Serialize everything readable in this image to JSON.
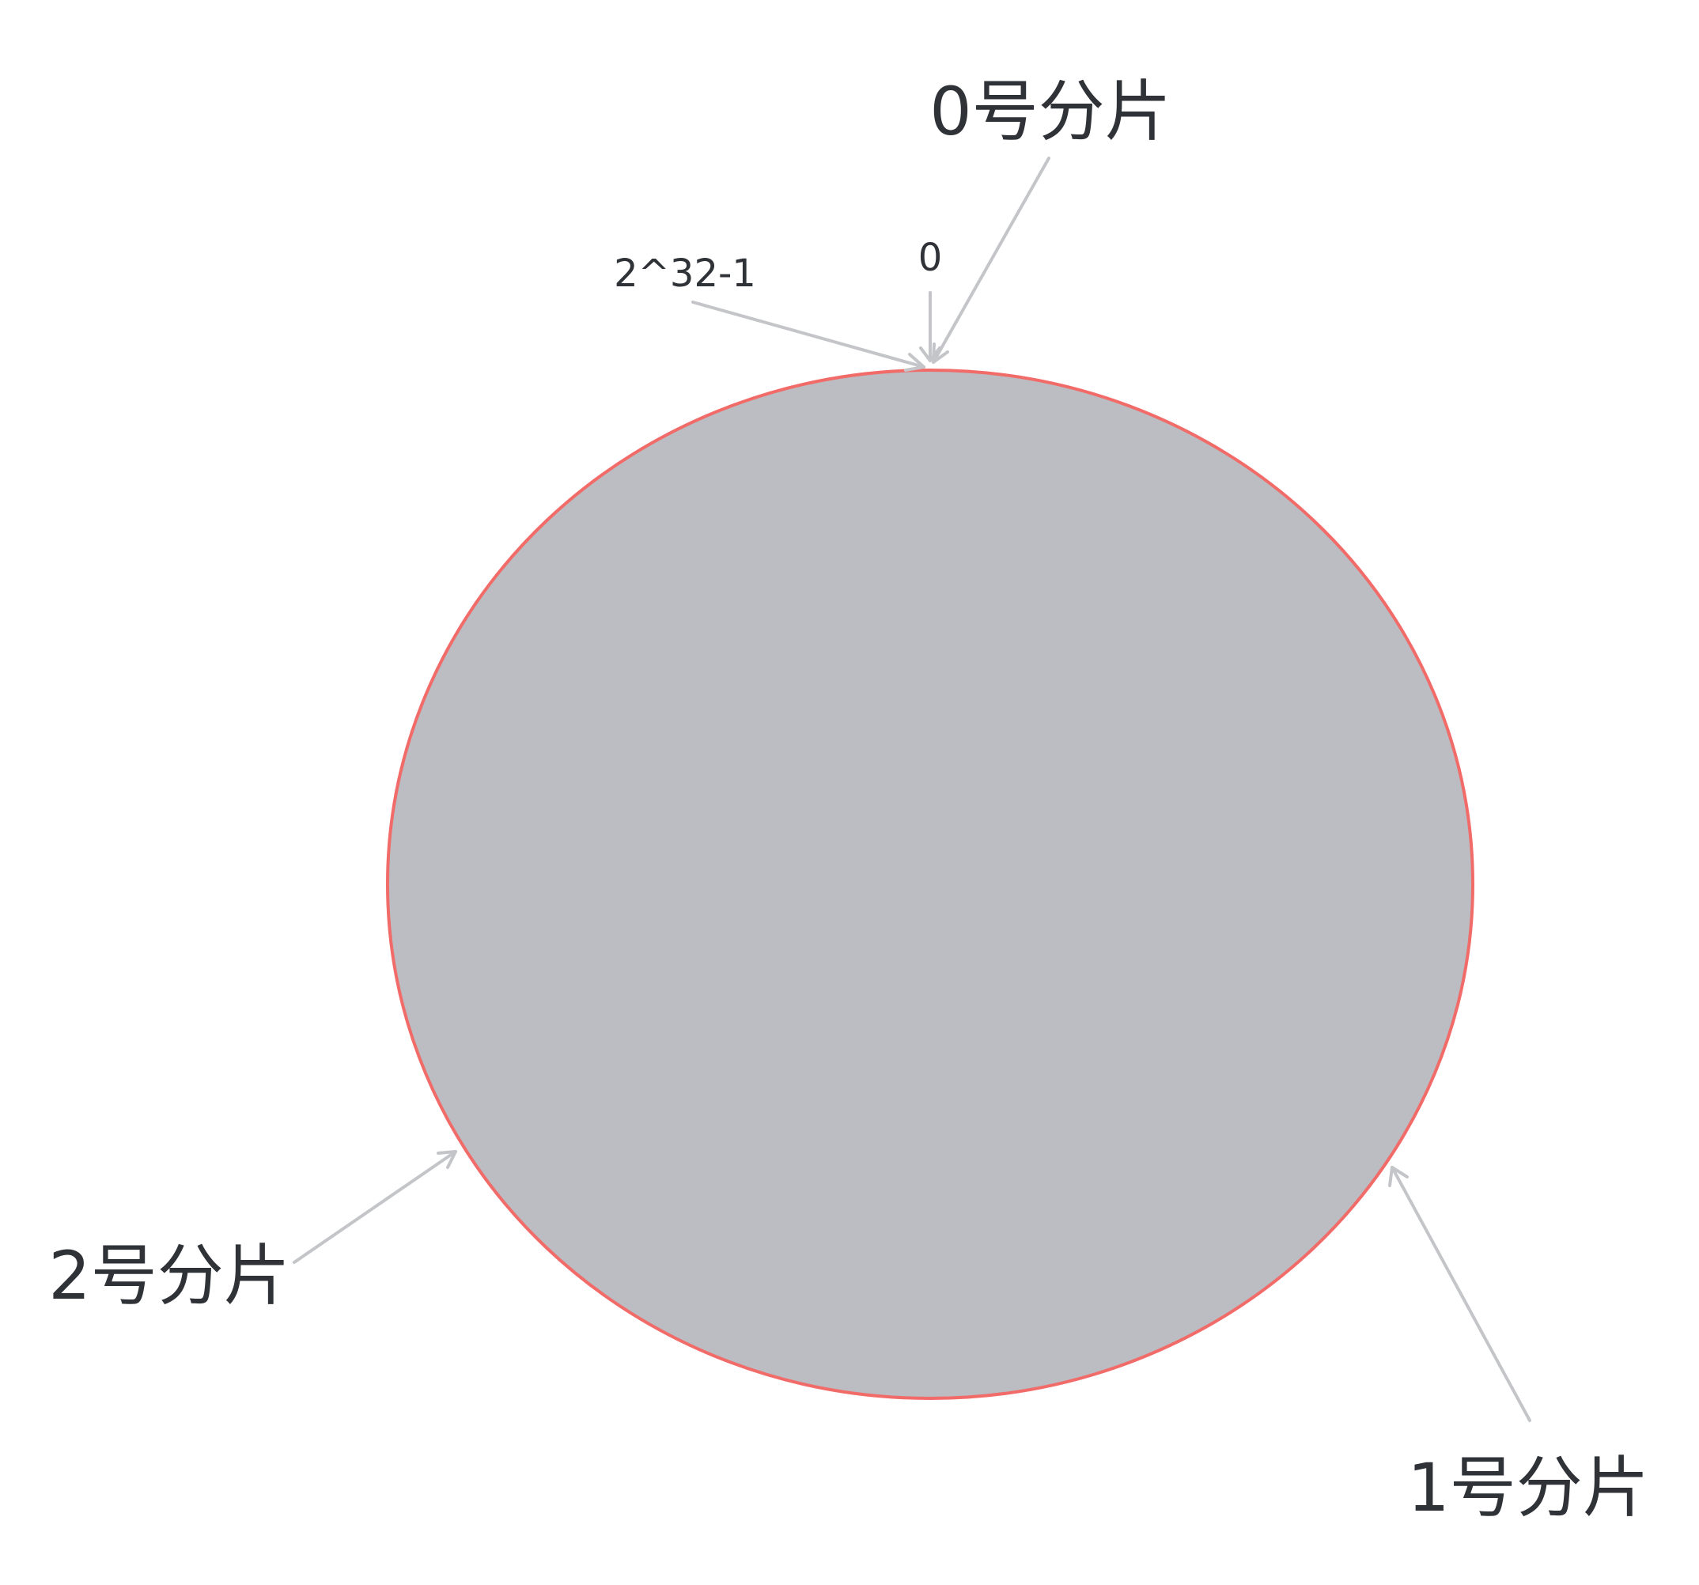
{
  "ring": {
    "fill_color": "#bbbdc2",
    "stroke_color": "#f16b69"
  },
  "labels": {
    "zero_marker": "0",
    "max_marker": "2^32-1",
    "shard_0": "0号分片",
    "shard_1": "1号分片",
    "shard_2": "2号分片"
  },
  "pointer_color": "#c4c5c9"
}
